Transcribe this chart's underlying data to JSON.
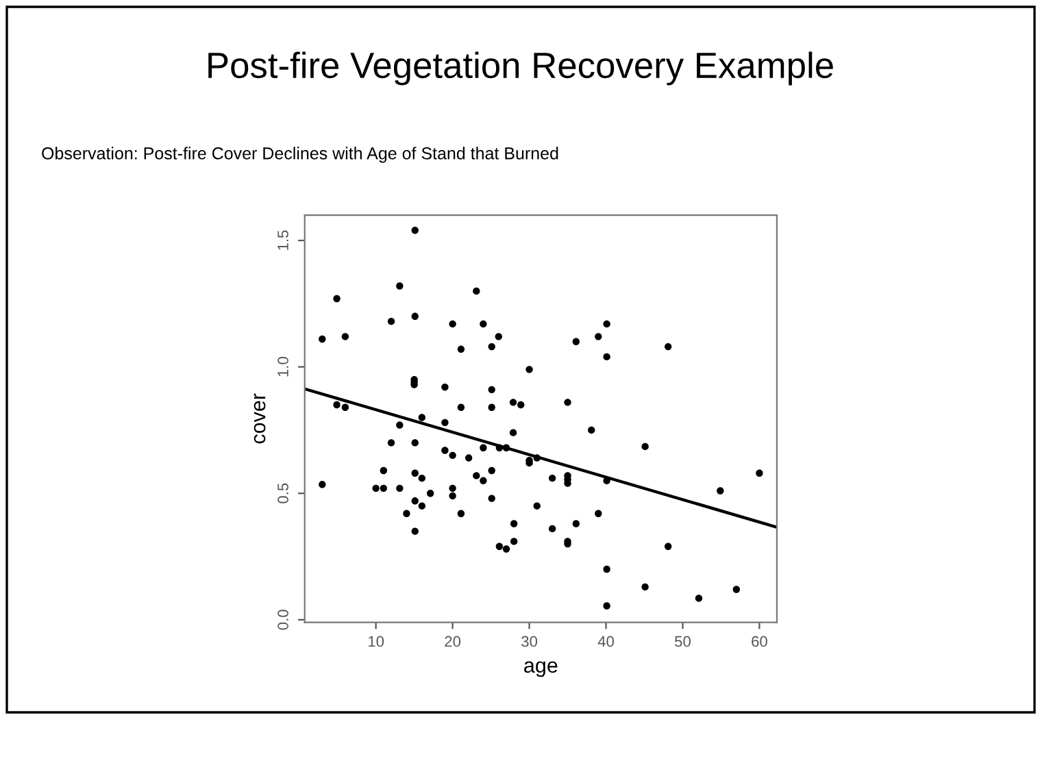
{
  "chart_data": {
    "type": "scatter",
    "title": "Post-fire Vegetation Recovery Example",
    "subtitle": "Observation: Post-fire Cover Declines with Age of Stand that Burned",
    "xlabel": "age",
    "ylabel": "cover",
    "xlim": [
      0.72,
      62.28
    ],
    "ylim": [
      -0.01,
      1.6
    ],
    "xticks": [
      10,
      20,
      30,
      40,
      50,
      60
    ],
    "yticks": [
      {
        "value": 0,
        "label": "0.0"
      },
      {
        "value": 0.5,
        "label": "0.5"
      },
      {
        "value": 1,
        "label": "1.0"
      },
      {
        "value": 1.5,
        "label": "1.5"
      }
    ],
    "grid": false,
    "legend": false,
    "marker": "circle",
    "series": [
      {
        "color": "#000000",
        "x": [
          15.1,
          4.9,
          13.1,
          23.1,
          15.1,
          12.0,
          20.0,
          24.0,
          26.0,
          3.0,
          6.0,
          21.1,
          25.1,
          15,
          15,
          15,
          19.0,
          25.1,
          4.9,
          6.0,
          16.0,
          19.0,
          21.1,
          25.1,
          27.9,
          28.9,
          13.1,
          27.9,
          40.1,
          36.1,
          39.0,
          48.1,
          40.1,
          30.0,
          35.0,
          38.1,
          12.0,
          15.1,
          19.0,
          20.0,
          22.1,
          24.0,
          26.1,
          27.0,
          11.0,
          3.0,
          10.0,
          11.0,
          13.1,
          15.1,
          16.0,
          15.1,
          16.0,
          17.1,
          20.0,
          20.0,
          23.1,
          24.0,
          25.1,
          25.1,
          14.0,
          21.1,
          15.1,
          26.1,
          27.0,
          28.0,
          28.0,
          45.1,
          30.0,
          30.0,
          31.0,
          33.0,
          35.0,
          35.0,
          35.0,
          40.1,
          60.0,
          54.9,
          31.0,
          39.0,
          36.1,
          33.0,
          35.0,
          35.0,
          48.1,
          40.1,
          45.1,
          57.0,
          52.1,
          40.1
        ],
        "values": [
          1.54,
          1.27,
          1.32,
          1.3,
          1.2,
          1.18,
          1.17,
          1.17,
          1.12,
          1.11,
          1.12,
          1.07,
          1.08,
          0.95,
          0.94,
          0.93,
          0.92,
          0.91,
          0.85,
          0.84,
          0.8,
          0.78,
          0.84,
          0.84,
          0.86,
          0.85,
          0.77,
          0.74,
          1.17,
          1.1,
          1.12,
          1.08,
          1.04,
          0.99,
          0.86,
          0.75,
          0.7,
          0.7,
          0.67,
          0.65,
          0.64,
          0.68,
          0.68,
          0.68,
          0.59,
          0.535,
          0.52,
          0.52,
          0.52,
          0.58,
          0.56,
          0.47,
          0.45,
          0.5,
          0.52,
          0.49,
          0.57,
          0.55,
          0.59,
          0.48,
          0.42,
          0.42,
          0.35,
          0.29,
          0.28,
          0.31,
          0.38,
          0.685,
          0.63,
          0.62,
          0.64,
          0.56,
          0.57,
          0.555,
          0.54,
          0.55,
          0.58,
          0.51,
          0.45,
          0.42,
          0.38,
          0.36,
          0.31,
          0.3,
          0.29,
          0.2,
          0.13,
          0.12,
          0.085,
          0.055
        ]
      },
      {
        "type": "line",
        "color": "#000000",
        "x": [
          0.72,
          62.28
        ],
        "values": [
          0.913,
          0.366
        ],
        "line_style": "solid",
        "marker": "none"
      }
    ]
  }
}
